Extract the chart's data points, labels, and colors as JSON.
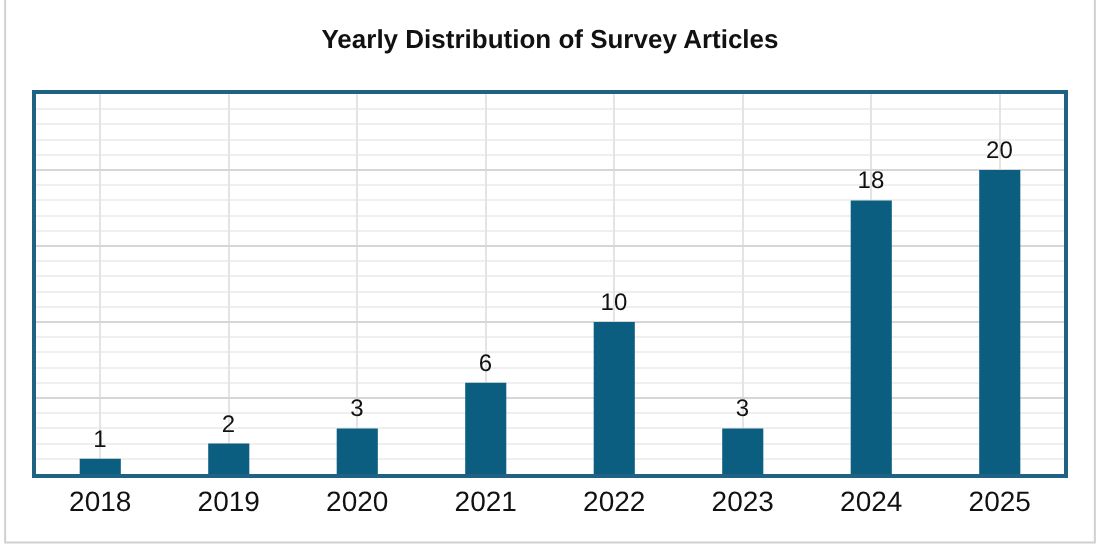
{
  "chart_data": {
    "type": "bar",
    "title": "Yearly Distribution of Survey Articles",
    "categories": [
      "2018",
      "2019",
      "2020",
      "2021",
      "2022",
      "2023",
      "2024",
      "2025"
    ],
    "values": [
      1,
      2,
      3,
      6,
      10,
      3,
      18,
      20
    ],
    "color": "#0b5e80",
    "ylim": [
      0,
      25
    ],
    "yticks": [
      {
        "value": 0,
        "label": null
      },
      {
        "value": 5,
        "label": null
      },
      {
        "value": 10,
        "label": null
      },
      {
        "value": 15,
        "label": null
      },
      {
        "value": 20,
        "label": null
      },
      {
        "value": 25,
        "label": null
      }
    ],
    "tick_labels": "x",
    "grid": true,
    "data_labels": true
  }
}
